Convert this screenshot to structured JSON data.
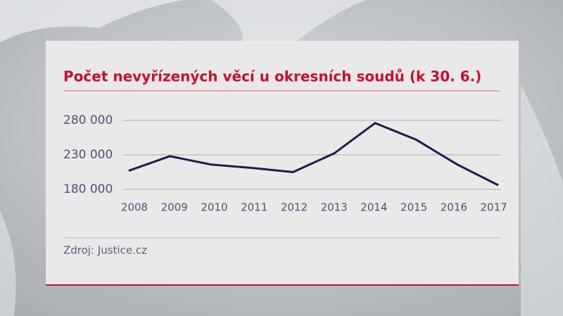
{
  "chart_data": {
    "type": "line",
    "title": "Počet nevyřízených věcí u okresních soudů (k 30. 6.)",
    "categories": [
      "2008",
      "2009",
      "2010",
      "2011",
      "2012",
      "2013",
      "2014",
      "2015",
      "2016",
      "2017"
    ],
    "values": [
      207000,
      228000,
      216000,
      211000,
      205000,
      232000,
      276000,
      252000,
      216000,
      186000
    ],
    "color": "#1b1f4f",
    "ylim": [
      180000,
      280000
    ],
    "yticks": [
      {
        "value": 180000,
        "label": "180 000"
      },
      {
        "value": 230000,
        "label": "230 000"
      },
      {
        "value": 280000,
        "label": "280 000"
      }
    ],
    "grid": true,
    "source": "Zdroj: Justice.cz"
  }
}
